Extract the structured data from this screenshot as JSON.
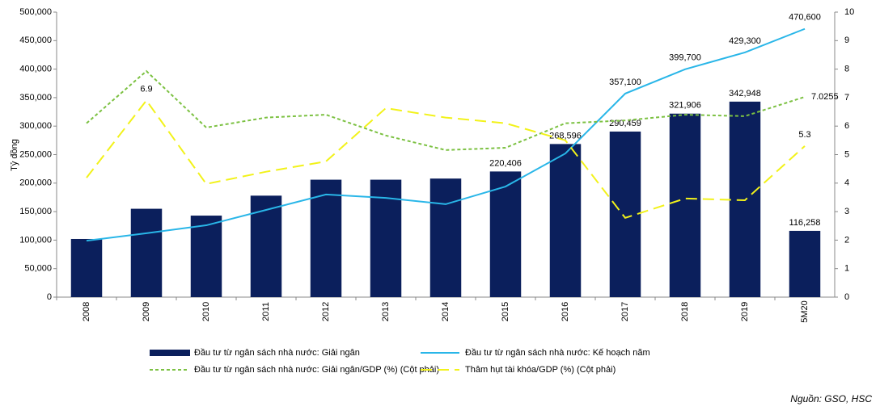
{
  "chart_data": {
    "type": "bar",
    "y_label": "Tỷ đồng",
    "source": "Nguồn: GSO, HSC",
    "categories": [
      "2008",
      "2009",
      "2010",
      "2011",
      "2012",
      "2013",
      "2014",
      "2015",
      "2016",
      "2017",
      "2018",
      "2019",
      "5M20"
    ],
    "ylim": [
      0,
      500000
    ],
    "yticks": [
      0,
      {
        "value": 50000,
        "label": "50,000"
      },
      {
        "value": 100000,
        "label": "100,000"
      },
      {
        "value": 150000,
        "label": "150,000"
      },
      {
        "value": 200000,
        "label": "200,000"
      },
      {
        "value": 250000,
        "label": "250,000"
      },
      {
        "value": 300000,
        "label": "300,000"
      },
      {
        "value": 350000,
        "label": "350,000"
      },
      {
        "value": 400000,
        "label": "400,000"
      },
      {
        "value": 450000,
        "label": "450,000"
      },
      {
        "value": 500000,
        "label": "500,000"
      }
    ],
    "y2lim": [
      0,
      10
    ],
    "y2ticks": [
      0,
      1,
      2,
      3,
      4,
      5,
      6,
      7,
      8,
      9,
      10
    ],
    "series": [
      {
        "name": "Đầu tư từ ngân sách nhà nước: Giải ngân",
        "type": "bar",
        "color": "#0b1f5c",
        "values": [
          102000,
          155000,
          143000,
          178000,
          206000,
          206000,
          208000,
          220406,
          268596,
          290459,
          321906,
          342948,
          116258
        ],
        "value_labels": [
          null,
          null,
          null,
          null,
          null,
          null,
          null,
          "220,406",
          "268,596",
          "290,459",
          "321,906",
          "342,948",
          "116,258"
        ]
      },
      {
        "name": "Đầu tư từ ngân sách nhà nước: Kế hoạch năm",
        "type": "line",
        "color": "#29b6e8",
        "values": [
          99000,
          112000,
          126000,
          153000,
          180000,
          174000,
          163000,
          194000,
          252000,
          357100,
          399700,
          429300,
          470600
        ],
        "value_labels": [
          null,
          null,
          null,
          null,
          null,
          null,
          null,
          null,
          null,
          "357,100",
          "399,700",
          "429,300",
          "470,600"
        ]
      },
      {
        "name": "Đầu tư từ ngân sách nhà nước: Giải ngân/GDP (%) (Cột phải)",
        "type": "line",
        "dash": "short",
        "axis": "y2",
        "color": "#7cc142",
        "values": [
          6.1,
          7.93,
          5.95,
          6.3,
          6.4,
          5.67,
          5.16,
          5.24,
          6.1,
          6.2,
          6.4,
          6.35,
          7.0255
        ],
        "value_labels": [
          null,
          null,
          null,
          null,
          null,
          null,
          null,
          null,
          null,
          null,
          null,
          null,
          "7.0255"
        ]
      },
      {
        "name": "Thâm hụt tài khóa/GDP (%) (Cột phải)",
        "type": "line",
        "dash": "long",
        "axis": "y2",
        "color": "#f2f21a",
        "values": [
          4.19,
          6.9,
          3.97,
          4.4,
          4.76,
          6.63,
          6.3,
          6.1,
          5.5,
          2.78,
          3.46,
          3.4,
          5.3
        ],
        "value_labels": [
          null,
          "6.9",
          null,
          null,
          null,
          null,
          null,
          null,
          null,
          null,
          null,
          null,
          "5.3"
        ]
      }
    ]
  }
}
